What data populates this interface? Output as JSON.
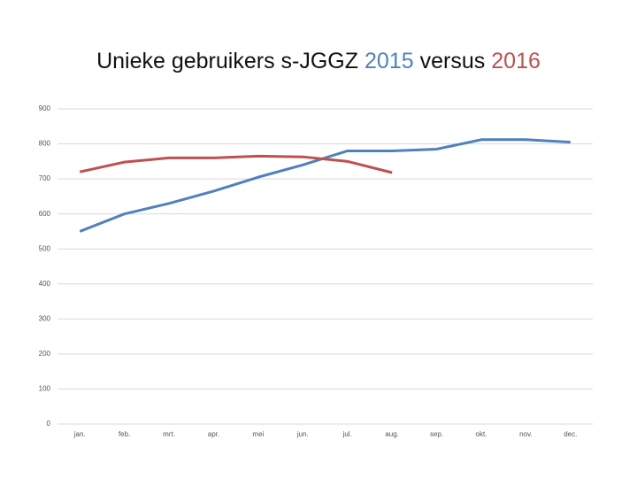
{
  "chart_data": {
    "type": "line",
    "title": "Unieke gebruikers s-JGGZ",
    "title_connector": "versus",
    "categories": [
      "jan.",
      "feb.",
      "mrt.",
      "apr.",
      "mei",
      "jun.",
      "jul.",
      "aug.",
      "sep.",
      "okt.",
      "nov.",
      "dec."
    ],
    "series": [
      {
        "name": "2015",
        "color": "#4f81bd",
        "values": [
          550,
          600,
          630,
          665,
          705,
          740,
          780,
          780,
          785,
          812,
          812,
          805
        ]
      },
      {
        "name": "2016",
        "color": "#c0504d",
        "values": [
          720,
          748,
          760,
          760,
          765,
          763,
          750,
          718,
          null,
          null,
          null,
          null
        ]
      }
    ],
    "ylim": [
      0,
      900
    ],
    "yticks": [
      0,
      100,
      200,
      300,
      400,
      500,
      600,
      700,
      800,
      900
    ],
    "grid": true
  }
}
